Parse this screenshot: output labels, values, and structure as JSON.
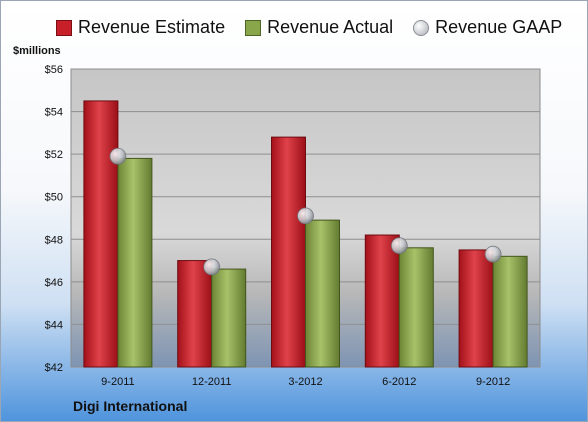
{
  "chart_data": {
    "type": "bar",
    "categories": [
      "9-2011",
      "12-2011",
      "3-2012",
      "6-2012",
      "9-2012"
    ],
    "series": [
      {
        "name": "Revenue Estimate",
        "values": [
          54.5,
          47.0,
          52.8,
          48.2,
          47.5
        ],
        "color": "#c8202a"
      },
      {
        "name": "Revenue Actual",
        "values": [
          51.8,
          46.6,
          48.9,
          47.6,
          47.2
        ],
        "color": "#8aa64a"
      }
    ],
    "markers": {
      "name": "Revenue GAAP",
      "values": [
        51.9,
        46.7,
        49.1,
        47.7,
        47.3
      ],
      "color": "#b9bcc2"
    },
    "ylim": [
      42,
      56
    ],
    "yticks": [
      "$42",
      "$44",
      "$46",
      "$48",
      "$50",
      "$52",
      "$54",
      "$56"
    ],
    "ylabel": "$millions",
    "grid": true,
    "legend_position": "top",
    "company": "Digi International"
  }
}
